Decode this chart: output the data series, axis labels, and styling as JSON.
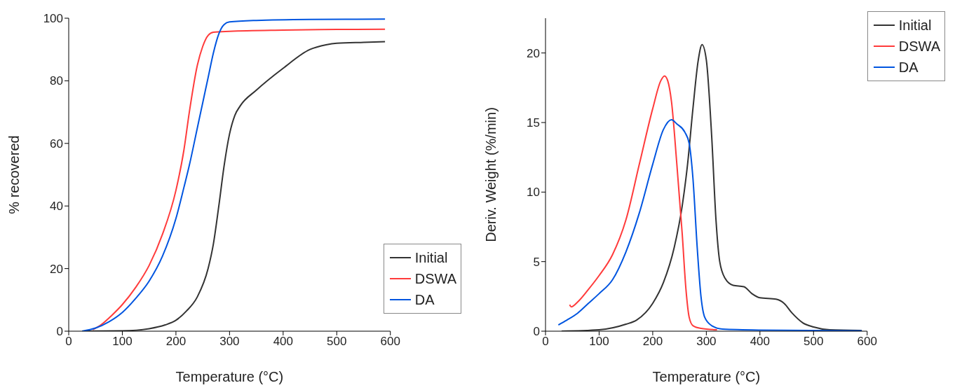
{
  "chart_data": [
    {
      "type": "line",
      "xlabel": "Temperature (°C)",
      "ylabel": "% recovered",
      "xlim": [
        0,
        600
      ],
      "xticks": [
        0,
        100,
        200,
        300,
        400,
        500,
        600
      ],
      "ylim": [
        0,
        100
      ],
      "yticks": [
        0,
        20,
        40,
        60,
        80,
        100
      ],
      "grid": false,
      "legend": "bottom right",
      "marker": "none",
      "line_style": "solid",
      "series": [
        {
          "name": "Initial",
          "color": "#333333",
          "x": [
            25,
            100,
            150,
            180,
            200,
            220,
            240,
            260,
            270,
            280,
            290,
            300,
            310,
            320,
            350,
            400,
            450,
            480,
            500,
            550,
            590
          ],
          "values": [
            0,
            0.1,
            0.8,
            2,
            3.5,
            6.5,
            11,
            20,
            28,
            40,
            53,
            63,
            69,
            72,
            77,
            84,
            90,
            91.5,
            92,
            92.3,
            92.5
          ]
        },
        {
          "name": "DSWA",
          "color": "#ff3b3b",
          "x": [
            45,
            60,
            80,
            100,
            125,
            150,
            175,
            200,
            215,
            225,
            240,
            250,
            260,
            270,
            300,
            400,
            500,
            590
          ],
          "values": [
            0.5,
            2,
            5,
            8.5,
            14,
            21,
            31,
            45,
            58,
            70,
            85,
            91,
            94.5,
            95.5,
            95.8,
            96.2,
            96.4,
            96.5
          ]
        },
        {
          "name": "DA",
          "color": "#0055e0",
          "x": [
            25,
            50,
            75,
            100,
            125,
            150,
            175,
            200,
            215,
            225,
            240,
            250,
            260,
            270,
            280,
            290,
            300,
            350,
            450,
            590
          ],
          "values": [
            0,
            1,
            3,
            6,
            10.5,
            16,
            24,
            36,
            46,
            53,
            65,
            73,
            81,
            89,
            95,
            98,
            98.8,
            99.3,
            99.6,
            99.7
          ]
        }
      ]
    },
    {
      "type": "line",
      "xlabel": "Temperature (°C)",
      "ylabel": "Deriv. Weight (%/min)",
      "xlim": [
        0,
        600
      ],
      "xticks": [
        0,
        100,
        200,
        300,
        400,
        500,
        600
      ],
      "ylim": [
        0,
        22.5
      ],
      "yticks": [
        0,
        5,
        10,
        15,
        20
      ],
      "grid": false,
      "legend": "top right",
      "marker": "none",
      "line_style": "solid",
      "series": [
        {
          "name": "Initial",
          "color": "#333333",
          "x": [
            30,
            100,
            150,
            170,
            200,
            220,
            240,
            255,
            265,
            275,
            285,
            292,
            300,
            310,
            318,
            325,
            335,
            350,
            370,
            385,
            400,
            430,
            445,
            460,
            480,
            500,
            530,
            590
          ],
          "values": [
            0,
            0.1,
            0.5,
            0.8,
            2,
            3.5,
            6,
            9,
            12,
            16,
            19.5,
            20.6,
            19.5,
            14,
            8,
            5,
            3.8,
            3.3,
            3.2,
            2.7,
            2.4,
            2.3,
            2,
            1.3,
            0.6,
            0.3,
            0.1,
            0.05
          ]
        },
        {
          "name": "DSWA",
          "color": "#ff3b3b",
          "x": [
            45,
            48,
            60,
            80,
            100,
            125,
            150,
            175,
            200,
            215,
            222,
            228,
            235,
            245,
            255,
            262,
            268,
            275,
            290,
            320
          ],
          "values": [
            1.9,
            1.75,
            2.1,
            3,
            4,
            5.5,
            8,
            12,
            16,
            18,
            18.35,
            18,
            16.5,
            12,
            7,
            3,
            1,
            0.4,
            0.2,
            0.1
          ]
        },
        {
          "name": "DA",
          "color": "#0055e0",
          "x": [
            24,
            40,
            60,
            80,
            100,
            125,
            150,
            175,
            200,
            220,
            235,
            245,
            260,
            268,
            275,
            283,
            290,
            297,
            310,
            330,
            400,
            590
          ],
          "values": [
            0.45,
            0.8,
            1.3,
            2,
            2.7,
            3.7,
            5.7,
            8.5,
            12,
            14.5,
            15.2,
            14.9,
            14.3,
            13.5,
            11,
            6,
            2.5,
            1,
            0.4,
            0.15,
            0.08,
            0.03
          ]
        }
      ]
    }
  ]
}
